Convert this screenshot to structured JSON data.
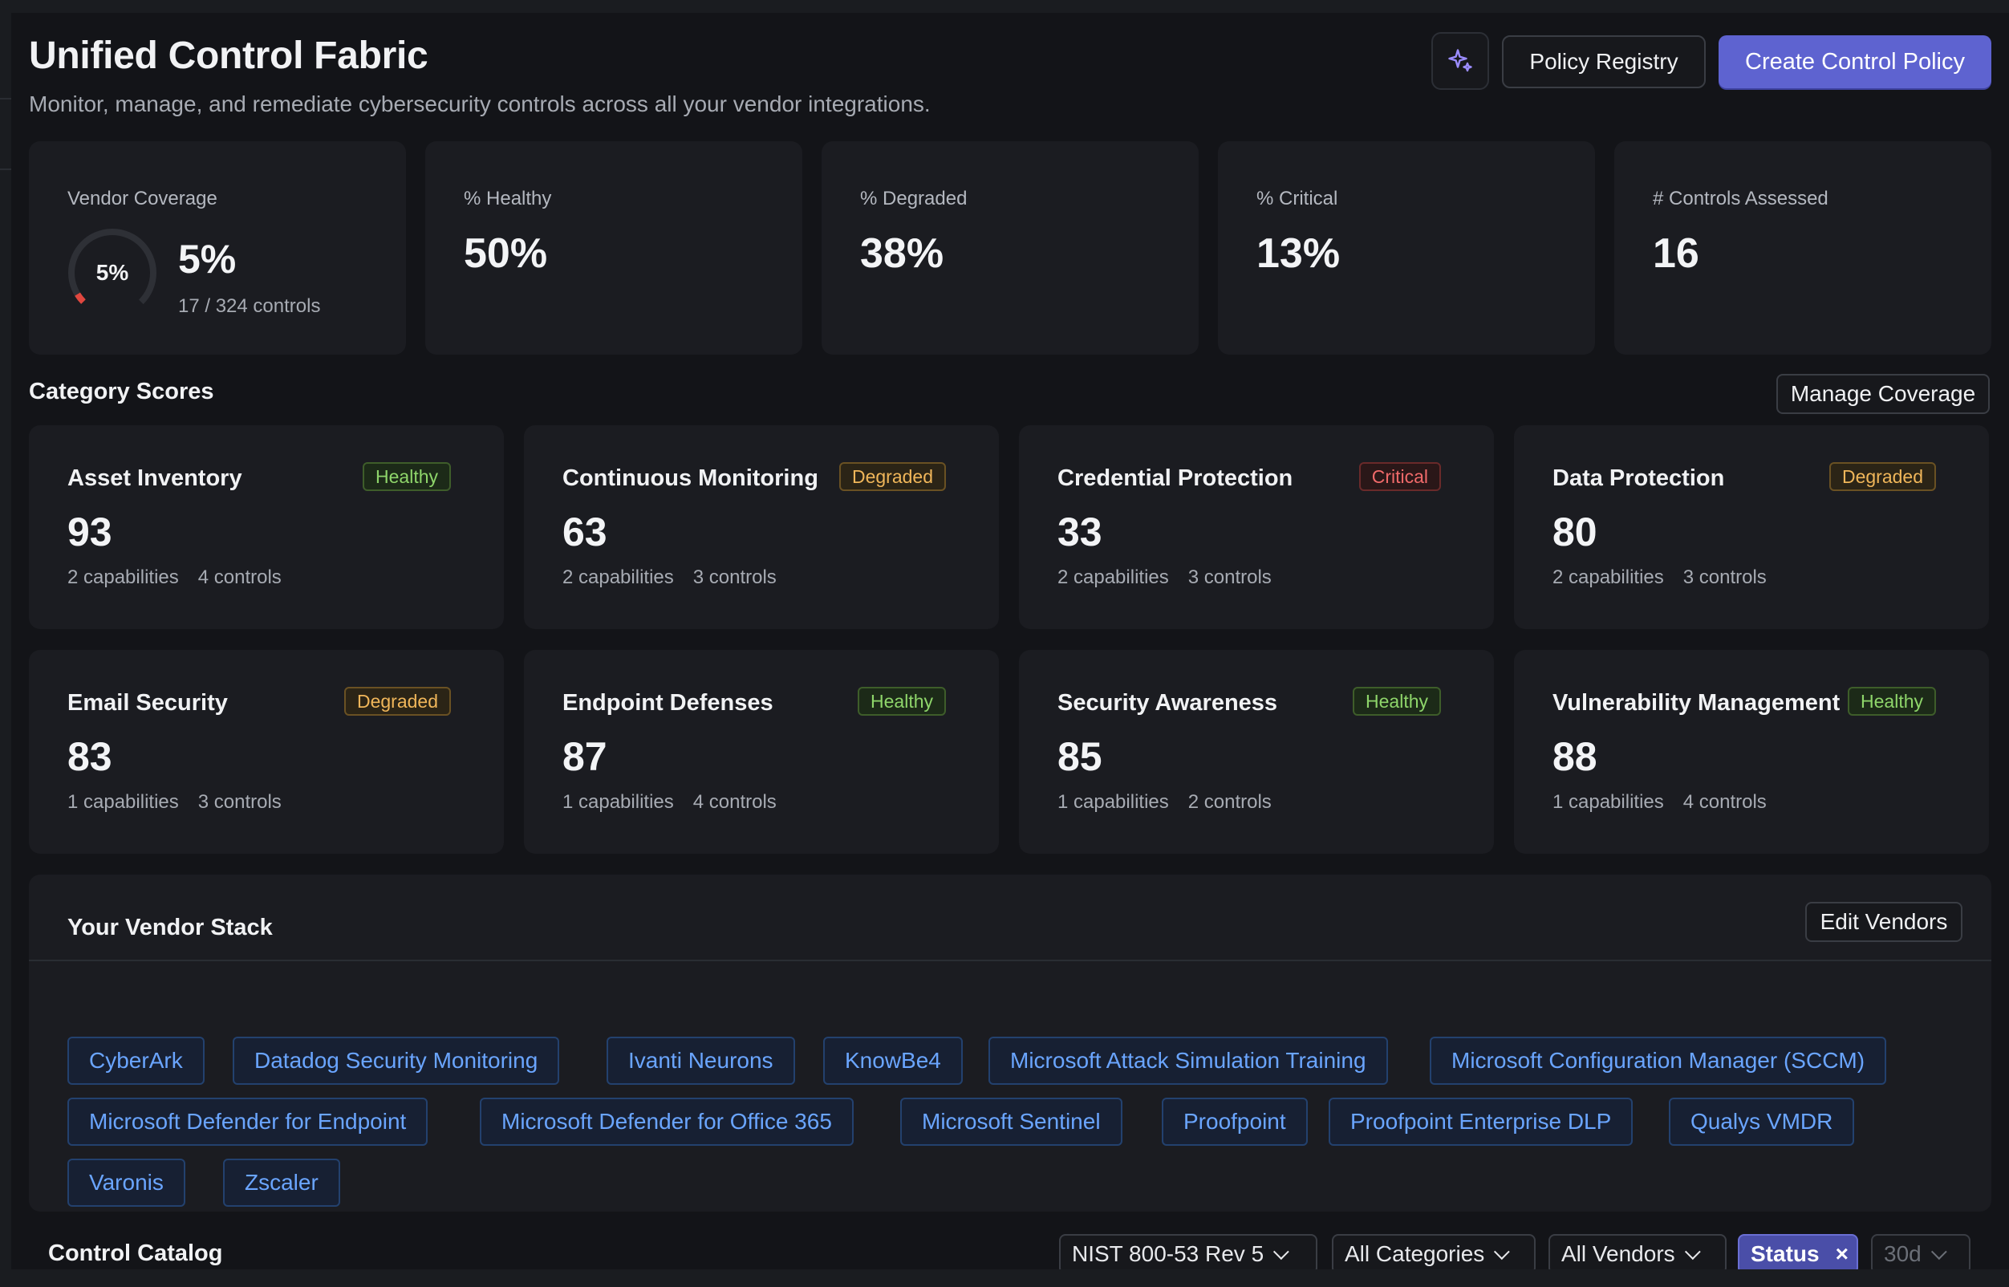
{
  "header": {
    "title": "Unified Control Fabric",
    "subtitle": "Monitor, manage, and remediate cybersecurity controls across all your vendor integrations.",
    "ai_icon": "sparkle-icon",
    "policy_registry_label": "Policy Registry",
    "create_policy_label": "Create Control Policy"
  },
  "stats": {
    "coverage": {
      "label": "Vendor Coverage",
      "gauge_text": "5%",
      "value": "5%",
      "sub": "17 / 324 controls",
      "fraction": 0.05,
      "gauge_color": "#e0473f"
    },
    "healthy": {
      "label": "% Healthy",
      "value": "50%"
    },
    "degraded": {
      "label": "% Degraded",
      "value": "38%"
    },
    "critical": {
      "label": "% Critical",
      "value": "13%"
    },
    "assessed": {
      "label": "# Controls Assessed",
      "value": "16"
    }
  },
  "categories": {
    "title": "Category Scores",
    "manage_label": "Manage Coverage",
    "items": [
      {
        "name": "Asset Inventory",
        "status": "Healthy",
        "score": "93",
        "capabilities": "2 capabilities",
        "controls": "4 controls"
      },
      {
        "name": "Continuous Monitoring",
        "status": "Degraded",
        "score": "63",
        "capabilities": "2 capabilities",
        "controls": "3 controls"
      },
      {
        "name": "Credential Protection",
        "status": "Critical",
        "score": "33",
        "capabilities": "2 capabilities",
        "controls": "3 controls"
      },
      {
        "name": "Data Protection",
        "status": "Degraded",
        "score": "80",
        "capabilities": "2 capabilities",
        "controls": "3 controls"
      },
      {
        "name": "Email Security",
        "status": "Degraded",
        "score": "83",
        "capabilities": "1 capabilities",
        "controls": "3 controls"
      },
      {
        "name": "Endpoint Defenses",
        "status": "Healthy",
        "score": "87",
        "capabilities": "1 capabilities",
        "controls": "4 controls"
      },
      {
        "name": "Security Awareness",
        "status": "Healthy",
        "score": "85",
        "capabilities": "1 capabilities",
        "controls": "2 controls"
      },
      {
        "name": "Vulnerability Management",
        "status": "Healthy",
        "score": "88",
        "capabilities": "1 capabilities",
        "controls": "4 controls"
      }
    ]
  },
  "vendors": {
    "title": "Your Vendor Stack",
    "edit_label": "Edit Vendors",
    "items": [
      "CyberArk",
      "Datadog Security Monitoring",
      "Ivanti Neurons",
      "KnowBe4",
      "Microsoft Attack Simulation Training",
      "Microsoft Configuration Manager (SCCM)",
      "Microsoft Defender for Endpoint",
      "Microsoft Defender for Office 365",
      "Microsoft Sentinel",
      "Proofpoint",
      "Proofpoint Enterprise DLP",
      "Qualys VMDR",
      "Varonis",
      "Zscaler"
    ]
  },
  "catalog": {
    "title": "Control Catalog",
    "framework_filter": "NIST 800-53 Rev 5",
    "category_filter": "All Categories",
    "vendor_filter": "All Vendors",
    "status_filter": "Status",
    "status_clear": "×",
    "time_filter": "30d"
  }
}
